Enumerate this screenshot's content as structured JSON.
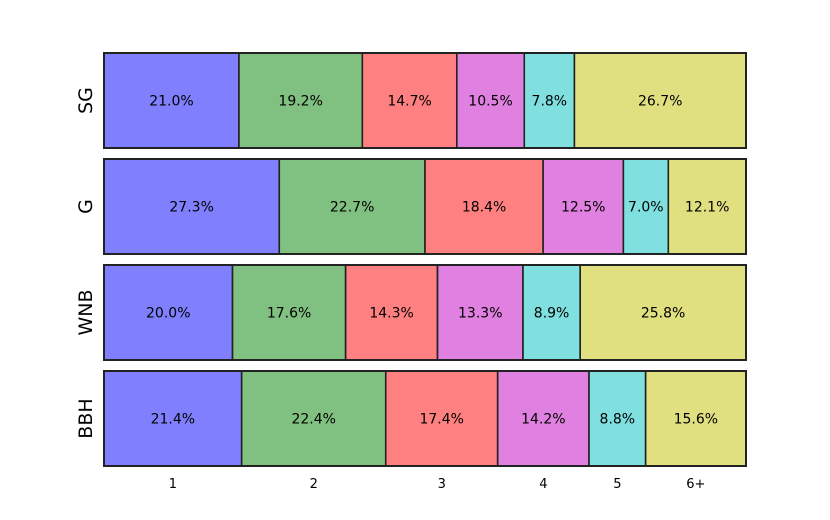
{
  "chart_data": {
    "type": "bar",
    "orientation": "horizontal-stacked-100",
    "categories": [
      "1",
      "2",
      "3",
      "4",
      "5",
      "6+"
    ],
    "colors": [
      "#8080ff",
      "#80c080",
      "#ff8080",
      "#e080e0",
      "#80e0e0",
      "#e0e080"
    ],
    "rows": [
      {
        "name": "SG",
        "values": [
          21.0,
          19.2,
          14.7,
          10.5,
          7.8,
          26.7
        ]
      },
      {
        "name": "G",
        "values": [
          27.3,
          22.7,
          18.4,
          12.5,
          7.0,
          12.1
        ]
      },
      {
        "name": "WNB",
        "values": [
          20.0,
          17.6,
          14.3,
          13.3,
          8.9,
          25.8
        ]
      },
      {
        "name": "BBH",
        "values": [
          21.4,
          22.4,
          17.4,
          14.2,
          8.8,
          15.6
        ]
      }
    ],
    "value_suffix": "%",
    "xlim": [
      0,
      100
    ],
    "grid": false,
    "legend": "none"
  }
}
